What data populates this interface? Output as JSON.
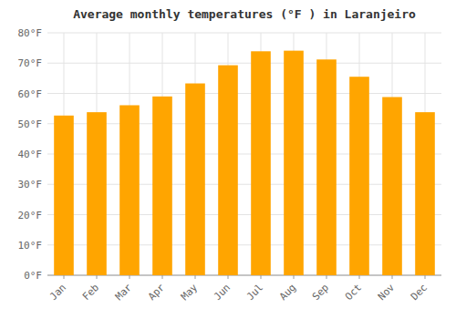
{
  "chart_data": {
    "type": "bar",
    "title": "Average monthly temperatures (°F ) in Laranjeiro",
    "categories": [
      "Jan",
      "Feb",
      "Mar",
      "Apr",
      "May",
      "Jun",
      "Jul",
      "Aug",
      "Sep",
      "Oct",
      "Nov",
      "Dec"
    ],
    "values": [
      52.7,
      53.8,
      56.1,
      59.0,
      63.3,
      69.3,
      73.9,
      74.1,
      71.2,
      65.5,
      58.8,
      53.8
    ],
    "color": "#FFA500",
    "ylim": [
      0,
      80
    ],
    "yticks": [
      {
        "value": 0,
        "label": "0°F"
      },
      {
        "value": 10,
        "label": "10°F"
      },
      {
        "value": 20,
        "label": "20°F"
      },
      {
        "value": 30,
        "label": "30°F"
      },
      {
        "value": 40,
        "label": "40°F"
      },
      {
        "value": 50,
        "label": "50°F"
      },
      {
        "value": 60,
        "label": "60°F"
      },
      {
        "value": 70,
        "label": "70°F"
      },
      {
        "value": 80,
        "label": "80°F"
      }
    ],
    "grid": true
  }
}
